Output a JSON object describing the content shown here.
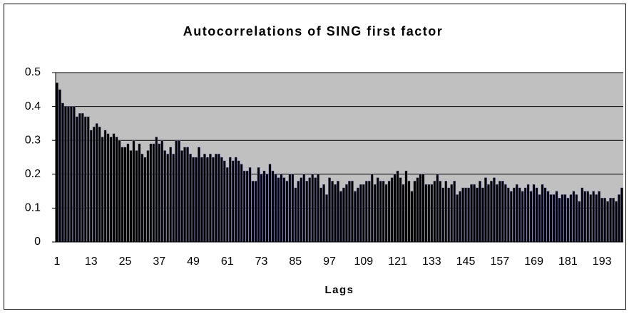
{
  "chart_data": {
    "type": "bar",
    "title": "Autocorrelations of SING first factor",
    "x_label": "Lags",
    "categories": [
      "1",
      null,
      null,
      null,
      null,
      null,
      null,
      null,
      null,
      null,
      null,
      null,
      "13",
      null,
      null,
      null,
      null,
      null,
      null,
      null,
      null,
      null,
      null,
      null,
      "25",
      null,
      null,
      null,
      null,
      null,
      null,
      null,
      null,
      null,
      null,
      null,
      "37",
      null,
      null,
      null,
      null,
      null,
      null,
      null,
      null,
      null,
      null,
      null,
      "49",
      null,
      null,
      null,
      null,
      null,
      null,
      null,
      null,
      null,
      null,
      null,
      "61",
      null,
      null,
      null,
      null,
      null,
      null,
      null,
      null,
      null,
      null,
      null,
      "73",
      null,
      null,
      null,
      null,
      null,
      null,
      null,
      null,
      null,
      null,
      null,
      "85",
      null,
      null,
      null,
      null,
      null,
      null,
      null,
      null,
      null,
      null,
      null,
      "97",
      null,
      null,
      null,
      null,
      null,
      null,
      null,
      null,
      null,
      null,
      null,
      "109",
      null,
      null,
      null,
      null,
      null,
      null,
      null,
      null,
      null,
      null,
      null,
      "121",
      null,
      null,
      null,
      null,
      null,
      null,
      null,
      null,
      null,
      null,
      null,
      "133",
      null,
      null,
      null,
      null,
      null,
      null,
      null,
      null,
      null,
      null,
      null,
      "145",
      null,
      null,
      null,
      null,
      null,
      null,
      null,
      null,
      null,
      null,
      null,
      "157",
      null,
      null,
      null,
      null,
      null,
      null,
      null,
      null,
      null,
      null,
      null,
      "169",
      null,
      null,
      null,
      null,
      null,
      null,
      null,
      null,
      null,
      null,
      null,
      "181",
      null,
      null,
      null,
      null,
      null,
      null,
      null,
      null,
      null,
      null,
      null,
      "193",
      null,
      null,
      null,
      null,
      null,
      null,
      null
    ],
    "values": [
      0.47,
      0.45,
      0.41,
      0.4,
      0.4,
      0.4,
      0.4,
      0.37,
      0.38,
      0.38,
      0.37,
      0.37,
      0.33,
      0.34,
      0.35,
      0.34,
      0.31,
      0.33,
      0.32,
      0.31,
      0.32,
      0.31,
      0.3,
      0.28,
      0.28,
      0.29,
      0.27,
      0.3,
      0.27,
      0.29,
      0.26,
      0.25,
      0.27,
      0.29,
      0.29,
      0.31,
      0.29,
      0.3,
      0.27,
      0.26,
      0.28,
      0.26,
      0.3,
      0.3,
      0.27,
      0.28,
      0.28,
      0.26,
      0.25,
      0.25,
      0.28,
      0.25,
      0.26,
      0.25,
      0.26,
      0.25,
      0.26,
      0.26,
      0.25,
      0.24,
      0.22,
      0.25,
      0.24,
      0.25,
      0.24,
      0.23,
      0.21,
      0.21,
      0.22,
      0.18,
      0.18,
      0.22,
      0.2,
      0.21,
      0.2,
      0.23,
      0.21,
      0.2,
      0.19,
      0.2,
      0.19,
      0.18,
      0.2,
      0.2,
      0.16,
      0.18,
      0.19,
      0.2,
      0.18,
      0.19,
      0.2,
      0.19,
      0.2,
      0.16,
      0.17,
      0.14,
      0.19,
      0.18,
      0.17,
      0.18,
      0.15,
      0.16,
      0.17,
      0.18,
      0.18,
      0.15,
      0.16,
      0.17,
      0.17,
      0.18,
      0.18,
      0.2,
      0.17,
      0.19,
      0.18,
      0.18,
      0.17,
      0.18,
      0.19,
      0.2,
      0.21,
      0.19,
      0.17,
      0.21,
      0.18,
      0.15,
      0.18,
      0.19,
      0.2,
      0.2,
      0.17,
      0.17,
      0.17,
      0.18,
      0.2,
      0.18,
      0.16,
      0.18,
      0.16,
      0.17,
      0.18,
      0.14,
      0.15,
      0.16,
      0.16,
      0.16,
      0.17,
      0.17,
      0.16,
      0.18,
      0.16,
      0.19,
      0.17,
      0.18,
      0.19,
      0.17,
      0.18,
      0.18,
      0.17,
      0.16,
      0.15,
      0.16,
      0.17,
      0.16,
      0.15,
      0.16,
      0.17,
      0.15,
      0.17,
      0.16,
      0.14,
      0.17,
      0.16,
      0.15,
      0.14,
      0.14,
      0.15,
      0.13,
      0.14,
      0.14,
      0.13,
      0.14,
      0.15,
      0.14,
      0.12,
      0.16,
      0.15,
      0.15,
      0.14,
      0.15,
      0.14,
      0.15,
      0.13,
      0.13,
      0.12,
      0.13,
      0.13,
      0.12,
      0.14,
      0.16
    ],
    "color": "#000000",
    "background": "#c0c0c0",
    "ylim": [
      0,
      0.5
    ],
    "yticks": [
      0,
      0.1,
      0.2,
      0.3,
      0.4,
      0.5
    ],
    "grid": true
  }
}
